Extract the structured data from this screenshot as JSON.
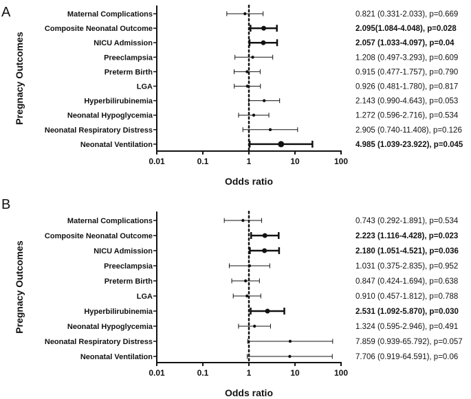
{
  "chart_data": [
    {
      "type": "forest",
      "panel": "A",
      "xlabel": "Odds ratio",
      "ylabel": "Pregnacy Outcomes",
      "xscale": "log",
      "xlim": [
        0.01,
        100
      ],
      "xticks": [
        "0.01",
        "0.1",
        "1",
        "10",
        "100"
      ],
      "reference_line": 1,
      "rows": [
        {
          "label": "Maternal Complications",
          "or": 0.821,
          "lo": 0.331,
          "hi": 2.033,
          "text": "0.821 (0.331-2.033), p=0.669",
          "significant": false
        },
        {
          "label": "Composite Neonatal Outcome",
          "or": 2.095,
          "lo": 1.084,
          "hi": 4.048,
          "text": "2.095(1.084-4.048), p=0.028",
          "significant": true
        },
        {
          "label": "NICU Admission",
          "or": 2.057,
          "lo": 1.033,
          "hi": 4.097,
          "text": "2.057 (1.033-4.097), p=0.04",
          "significant": true
        },
        {
          "label": "Preeclampsia",
          "or": 1.208,
          "lo": 0.497,
          "hi": 3.293,
          "text": "1.208 (0.497-3.293), p=0.609",
          "significant": false
        },
        {
          "label": "Preterm Birth",
          "or": 0.915,
          "lo": 0.477,
          "hi": 1.757,
          "text": "0.915 (0.477-1.757), p=0.790",
          "significant": false
        },
        {
          "label": "LGA",
          "or": 0.926,
          "lo": 0.481,
          "hi": 1.78,
          "text": "0.926 (0.481-1.780), p=0.817",
          "significant": false
        },
        {
          "label": "Hyperbilirubinemia",
          "or": 2.143,
          "lo": 0.99,
          "hi": 4.643,
          "text": "2.143 (0.990-4.643), p=0.053",
          "significant": false
        },
        {
          "label": "Neonatal Hypoglycemia",
          "or": 1.272,
          "lo": 0.596,
          "hi": 2.716,
          "text": "1.272 (0.596-2.716), p=0.534",
          "significant": false
        },
        {
          "label": "Neonatal Respiratory Distress",
          "or": 2.905,
          "lo": 0.74,
          "hi": 11.408,
          "text": "2.905 (0.740-11.408), p=0.126",
          "significant": false
        },
        {
          "label": "Neonatal Ventilation",
          "or": 4.985,
          "lo": 1.039,
          "hi": 23.922,
          "text": "4.985 (1.039-23.922), p=0.045",
          "significant": true
        }
      ]
    },
    {
      "type": "forest",
      "panel": "B",
      "xlabel": "Odds ratio",
      "ylabel": "Pregnacy Outcomes",
      "xscale": "log",
      "xlim": [
        0.01,
        100
      ],
      "xticks": [
        "0.01",
        "0.1",
        "1",
        "10",
        "100"
      ],
      "reference_line": 1,
      "rows": [
        {
          "label": "Maternal Complications",
          "or": 0.743,
          "lo": 0.292,
          "hi": 1.891,
          "text": "0.743 (0.292-1.891), p=0.534",
          "significant": false
        },
        {
          "label": "Composite Neonatal Outcome",
          "or": 2.223,
          "lo": 1.116,
          "hi": 4.428,
          "text": "2.223 (1.116-4.428), p=0.023",
          "significant": true
        },
        {
          "label": "NICU Admission",
          "or": 2.18,
          "lo": 1.051,
          "hi": 4.521,
          "text": "2.180 (1.051-4.521), p=0.036",
          "significant": true
        },
        {
          "label": "Preeclampsia",
          "or": 1.031,
          "lo": 0.375,
          "hi": 2.835,
          "text": "1.031 (0.375-2.835), p=0.952",
          "significant": false
        },
        {
          "label": "Preterm Birth",
          "or": 0.847,
          "lo": 0.424,
          "hi": 1.694,
          "text": "0.847 (0.424-1.694), p=0.638",
          "significant": false
        },
        {
          "label": "LGA",
          "or": 0.91,
          "lo": 0.457,
          "hi": 1.812,
          "text": "0.910 (0.457-1.812), p=0.788",
          "significant": false
        },
        {
          "label": "Hyperbilirubinemia",
          "or": 2.531,
          "lo": 1.092,
          "hi": 5.87,
          "text": "2.531 (1.092-5.870), p=0.030",
          "significant": true
        },
        {
          "label": "Neonatal Hypoglycemia",
          "or": 1.324,
          "lo": 0.595,
          "hi": 2.946,
          "text": "1.324 (0.595-2.946), p=0.491",
          "significant": false
        },
        {
          "label": "Neonatal Respiratory Distress",
          "or": 7.859,
          "lo": 0.939,
          "hi": 65.792,
          "text": "7.859 (0.939-65.792), p=0.057",
          "significant": false
        },
        {
          "label": "Neonatal Ventilation",
          "or": 7.706,
          "lo": 0.919,
          "hi": 64.591,
          "text": "7.706 (0.919-64.591), p=0.06",
          "significant": false
        }
      ]
    }
  ]
}
